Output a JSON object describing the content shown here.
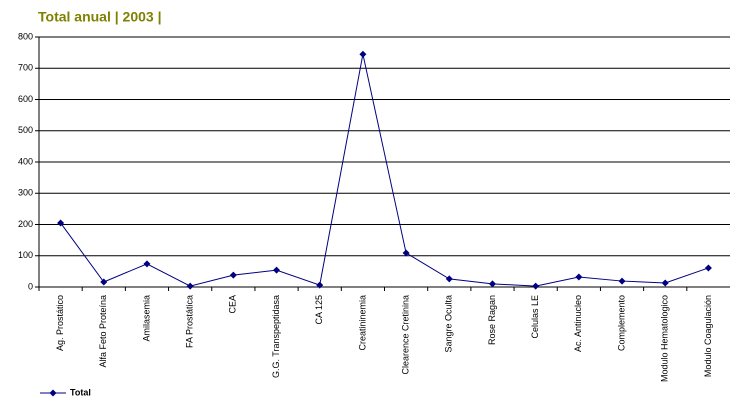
{
  "chart_data": {
    "type": "line",
    "title": "Total anual | 2003 |",
    "categories": [
      "Ag. Prostático",
      "Alfa Feto Proteína",
      "Amilasemia",
      "FA Prostática",
      "CEA",
      "G.G. Transpeptidasa",
      "CA 125",
      "Creatininemia",
      "Clearence Cretinina",
      "Sangre Oculta",
      "Rose Ragan",
      "Celulas LE",
      "Ac. Antinucleo",
      "Complemento",
      "Modulo Hematologico",
      "Modulo Coagulación"
    ],
    "series": [
      {
        "name": "Total",
        "color": "#000080",
        "values": [
          205,
          16,
          74,
          3,
          38,
          54,
          6,
          745,
          109,
          26,
          10,
          3,
          32,
          19,
          13,
          61
        ]
      }
    ],
    "ylim": [
      0,
      800
    ],
    "yticks": [
      0,
      100,
      200,
      300,
      400,
      500,
      600,
      700,
      800
    ],
    "grid": true,
    "legend": "bottom-left"
  }
}
